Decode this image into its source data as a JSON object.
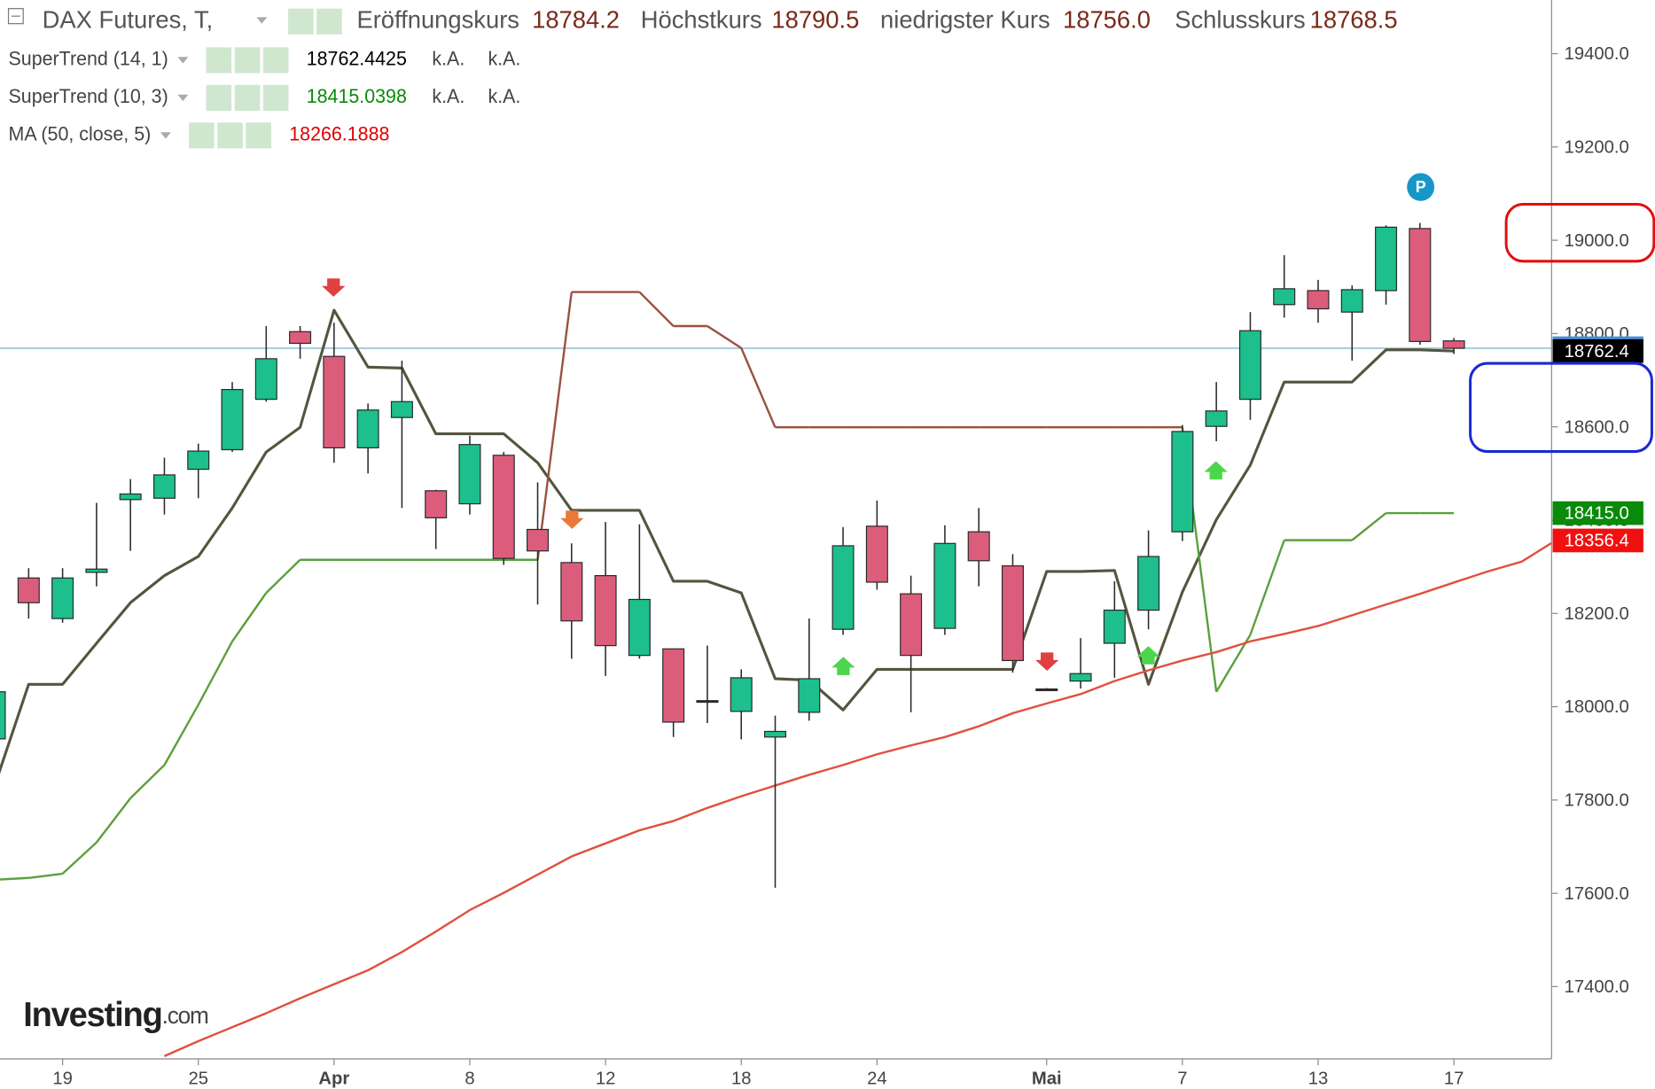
{
  "chart_data": {
    "type": "candlestick",
    "title": "DAX Futures, T,",
    "header": [
      {
        "label": "Eröffnungskurs",
        "value": "18784.2"
      },
      {
        "label": "Höchstkurs",
        "value": "18790.5"
      },
      {
        "label": "niedrigster Kurs",
        "value": "18756.0"
      },
      {
        "label": "Schlusskurs",
        "value": "18768.5"
      }
    ],
    "logo": "Investing",
    "logo_suffix": ".com",
    "categories": [
      null,
      null,
      "19",
      null,
      null,
      null,
      "25",
      null,
      null,
      null,
      "Apr",
      null,
      null,
      null,
      "8",
      null,
      null,
      null,
      "12",
      null,
      null,
      null,
      "18",
      null,
      null,
      null,
      "24",
      null,
      null,
      null,
      null,
      "Mai",
      null,
      null,
      null,
      "7",
      null,
      null,
      null,
      "13",
      null,
      null,
      null,
      "17",
      null,
      null,
      null
    ],
    "open": [
      17931,
      18276,
      18189,
      18288,
      18444,
      18447,
      18509,
      18551,
      18659,
      18804,
      18751,
      18555,
      18620,
      18463,
      18435,
      18539,
      18380,
      18309,
      18281,
      18110,
      18124,
      18013,
      17990,
      17935,
      17988,
      18166,
      18387,
      18242,
      18168,
      18375,
      18302,
      18038,
      18055,
      18136,
      18207,
      18375,
      18601,
      18659,
      18862,
      18892,
      18846,
      18892,
      19025,
      18784.2,
      null,
      null,
      null
    ],
    "high": [
      18040,
      18297,
      18297,
      18437,
      18488,
      18534,
      18564,
      18696,
      18816,
      18816,
      18823,
      18650,
      18742,
      18465,
      18581,
      18546,
      18481,
      18350,
      18396,
      18391,
      18124,
      18131,
      18080,
      17981,
      18189,
      18385,
      18442,
      18281,
      18389,
      18426,
      18327,
      18040,
      18147,
      18269,
      18378,
      18604,
      18696,
      18846,
      18968,
      18915,
      18903,
      19032,
      19037,
      18790.5,
      null,
      null,
      null
    ],
    "low": [
      17905,
      18189,
      18180,
      18258,
      18334,
      18412,
      18447,
      18546,
      18654,
      18746,
      18523,
      18500,
      18426,
      18338,
      18412,
      18304,
      18219,
      18103,
      18066,
      18103,
      17935,
      17965,
      17930,
      17612,
      17970,
      18154,
      18251,
      17988,
      18154,
      18258,
      18073,
      18034,
      18039,
      18062,
      18166,
      18355,
      18569,
      18615,
      18834,
      18823,
      18742,
      18862,
      18776,
      18756.0,
      null,
      null,
      null
    ],
    "close": [
      18032,
      18223,
      18276,
      18295,
      18456,
      18497,
      18548,
      18680,
      18746,
      18779,
      18555,
      18636,
      18654,
      18405,
      18562,
      18318,
      18334,
      18184,
      18131,
      18230,
      17967,
      18010,
      18062,
      17947,
      18060,
      18345,
      18267,
      18110,
      18350,
      18313,
      18099,
      18036,
      18071,
      18207,
      18322,
      18590,
      18634,
      18806,
      18896,
      18853,
      18894,
      19028,
      18783,
      18768.5,
      null,
      null,
      null
    ],
    "up_color": "#1dbf8c",
    "down_color": "#dc5d7b",
    "series": [
      {
        "name": "SuperTrend (14, 1)",
        "color": "#55553f",
        "legend_value": "18762.4425",
        "legend_value_color": "#000000",
        "legend_extra": [
          "k.A.",
          "k.A."
        ],
        "values": [
          17831,
          18048,
          18048,
          18136,
          18223,
          18281,
          18322,
          18426,
          18546,
          18599,
          18850,
          18728,
          18726,
          18585,
          18585,
          18585,
          18523,
          18421,
          18421,
          18421,
          18269,
          18269,
          18244,
          18060,
          18057,
          17993,
          18080,
          18080,
          18080,
          18080,
          18080,
          18290,
          18290,
          18292,
          18048,
          18246,
          18401,
          18518,
          18696,
          18696,
          18696,
          18765,
          18765,
          18762.4425,
          null,
          null,
          null
        ]
      },
      {
        "name": "SuperTrend (10, 3)",
        "color": "#5aa03c",
        "down_color": "#9a5040",
        "legend_value": "18415.0398",
        "legend_value_color": "#0a8a0a",
        "legend_extra": [
          "k.A.",
          "k.A."
        ],
        "values": [
          17629,
          17633,
          17642,
          17709,
          17804,
          17875,
          18004,
          18140,
          18244,
          18315,
          18315,
          18315,
          18315,
          18315,
          18315,
          18315,
          18315,
          18889,
          18889,
          18889,
          18816,
          18816,
          18769,
          18599,
          18599,
          18599,
          18599,
          18599,
          18599,
          18599,
          18599,
          18599,
          18599,
          18599,
          18599,
          18599,
          18032,
          18154,
          18357,
          18357,
          18357,
          18415,
          18415,
          18415.0398,
          null,
          null,
          null
        ]
      },
      {
        "name": "MA (50, close, 5)",
        "color": "#e05040",
        "legend_value": "18266.1888",
        "legend_value_color": "#e00000",
        "values": [
          null,
          null,
          null,
          null,
          null,
          17251,
          17283,
          17313,
          17343,
          17375,
          17405,
          17435,
          17474,
          17518,
          17564,
          17601,
          17640,
          17679,
          17707,
          17735,
          17755,
          17783,
          17808,
          17831,
          17854,
          17875,
          17898,
          17917,
          17935,
          17958,
          17986,
          18007,
          18027,
          18055,
          18078,
          18099,
          18117,
          18140,
          18156,
          18173,
          18196,
          18219,
          18242,
          18266.1888,
          18290,
          18311,
          18356.4
        ]
      }
    ],
    "ylim": [
      17245,
      19515
    ],
    "yticks": [
      {
        "value": 17400,
        "label": "17400.0"
      },
      {
        "value": 17600,
        "label": "17600.0"
      },
      {
        "value": 17800,
        "label": "17800.0"
      },
      {
        "value": 18000,
        "label": "18000.0"
      },
      {
        "value": 18200,
        "label": "18200.0"
      },
      {
        "value": 18400,
        "label": "18400.0"
      },
      {
        "value": 18600,
        "label": "18600.0"
      },
      {
        "value": 18800,
        "label": "18800.0"
      },
      {
        "value": 19000,
        "label": "19000.0"
      },
      {
        "value": 19200,
        "label": "19200.0"
      },
      {
        "value": 19400,
        "label": "19400.0"
      }
    ],
    "price_line": 18768.5,
    "price_line_color": "#8fbcd4",
    "axis_badges": [
      {
        "value": 18768.5,
        "color": "#4a8fd6"
      },
      {
        "value": 18762.4,
        "color": "#000000"
      },
      {
        "value": 18415.0,
        "label": "18415.0",
        "color": "#0a8a0a"
      },
      {
        "value": 18356.4,
        "color": "#f01010"
      }
    ]
  }
}
